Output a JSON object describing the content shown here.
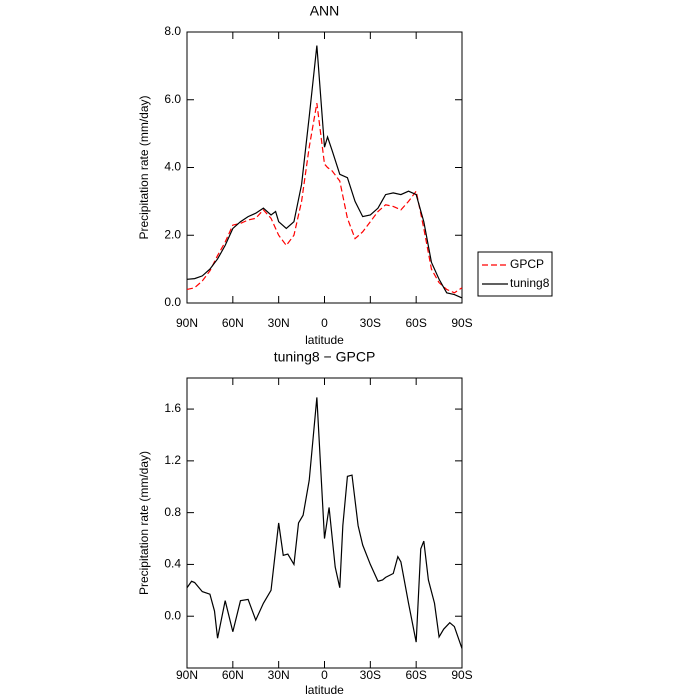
{
  "chart_data": [
    {
      "type": "line",
      "title": "ANN",
      "xlabel": "latitude",
      "ylabel": "Precipitation rate (mm/day)",
      "x": [
        90,
        85,
        80,
        75,
        70,
        65,
        60,
        55,
        50,
        45,
        40,
        35,
        32,
        30,
        25,
        20,
        15,
        10,
        5,
        0,
        -2,
        -5,
        -10,
        -15,
        -20,
        -25,
        -30,
        -35,
        -40,
        -45,
        -50,
        -55,
        -60,
        -65,
        -70,
        -75,
        -80,
        -85,
        -90
      ],
      "series": [
        {
          "name": "GPCP",
          "color": "#ff0000",
          "line_style": "dashed",
          "values": [
            0.4,
            0.45,
            0.65,
            0.95,
            1.4,
            1.8,
            2.3,
            2.35,
            2.45,
            2.5,
            2.75,
            2.5,
            2.2,
            2.0,
            1.7,
            2.0,
            3.0,
            4.6,
            5.9,
            4.1,
            4.0,
            3.9,
            3.6,
            2.5,
            1.9,
            2.1,
            2.4,
            2.7,
            2.9,
            2.85,
            2.75,
            3.0,
            3.3,
            2.2,
            1.0,
            0.6,
            0.4,
            0.3,
            0.45
          ]
        },
        {
          "name": "tuning8",
          "color": "#000000",
          "line_style": "solid",
          "values": [
            0.7,
            0.72,
            0.8,
            1.0,
            1.3,
            1.7,
            2.2,
            2.4,
            2.55,
            2.65,
            2.8,
            2.6,
            2.7,
            2.4,
            2.2,
            2.4,
            3.5,
            5.5,
            7.6,
            4.6,
            4.9,
            4.5,
            3.8,
            3.7,
            3.0,
            2.55,
            2.6,
            2.8,
            3.2,
            3.25,
            3.2,
            3.3,
            3.2,
            2.4,
            1.2,
            0.7,
            0.3,
            0.25,
            0.15
          ]
        }
      ],
      "xlim": [
        90,
        -90
      ],
      "xticks": [
        {
          "value": 90,
          "label": "90N"
        },
        {
          "value": 60,
          "label": "60N"
        },
        {
          "value": 30,
          "label": "30N"
        },
        0,
        {
          "value": -30,
          "label": "30S"
        },
        {
          "value": -60,
          "label": "60S"
        },
        {
          "value": -90,
          "label": "90S"
        }
      ],
      "ylim": [
        0,
        8
      ],
      "yticks": [
        {
          "value": 0,
          "label": "0.0"
        },
        {
          "value": 2,
          "label": "2.0"
        },
        {
          "value": 4,
          "label": "4.0"
        },
        {
          "value": 6,
          "label": "6.0"
        },
        {
          "value": 8,
          "label": "8.0"
        }
      ],
      "legend": "outside-right"
    },
    {
      "type": "line",
      "title": "tuning8 − GPCP",
      "xlabel": "latitude",
      "ylabel": "Precipitation rate (mm/day)",
      "x": [
        90,
        87,
        85,
        80,
        75,
        72,
        70,
        65,
        60,
        55,
        50,
        45,
        40,
        35,
        30,
        27,
        24,
        20,
        17,
        14,
        10,
        5,
        0,
        -3,
        -7,
        -10,
        -12,
        -15,
        -18,
        -22,
        -25,
        -30,
        -35,
        -38,
        -40,
        -45,
        -48,
        -50,
        -55,
        -60,
        -63,
        -65,
        -68,
        -72,
        -75,
        -78,
        -82,
        -85,
        -90
      ],
      "series": [
        {
          "color": "#000000",
          "line_style": "solid",
          "values": [
            0.22,
            0.27,
            0.26,
            0.19,
            0.17,
            0.04,
            -0.17,
            0.12,
            -0.12,
            0.12,
            0.13,
            -0.03,
            0.1,
            0.2,
            0.72,
            0.47,
            0.48,
            0.4,
            0.72,
            0.78,
            1.05,
            1.69,
            0.6,
            0.84,
            0.38,
            0.22,
            0.7,
            1.08,
            1.09,
            0.7,
            0.55,
            0.4,
            0.27,
            0.28,
            0.3,
            0.33,
            0.46,
            0.42,
            0.1,
            -0.2,
            0.52,
            0.58,
            0.28,
            0.1,
            -0.16,
            -0.1,
            -0.05,
            -0.08,
            -0.25
          ]
        }
      ],
      "xlim": [
        90,
        -90
      ],
      "xticks": [
        {
          "value": 90,
          "label": "90N"
        },
        {
          "value": 60,
          "label": "60N"
        },
        {
          "value": 30,
          "label": "30N"
        },
        0,
        {
          "value": -30,
          "label": "30S"
        },
        {
          "value": -60,
          "label": "60S"
        },
        {
          "value": -90,
          "label": "90S"
        }
      ],
      "ylim": [
        -0.4,
        1.84
      ],
      "yticks": [
        {
          "value": 0,
          "label": "0.0"
        },
        0.4,
        0.8,
        1.2,
        1.6
      ]
    }
  ]
}
